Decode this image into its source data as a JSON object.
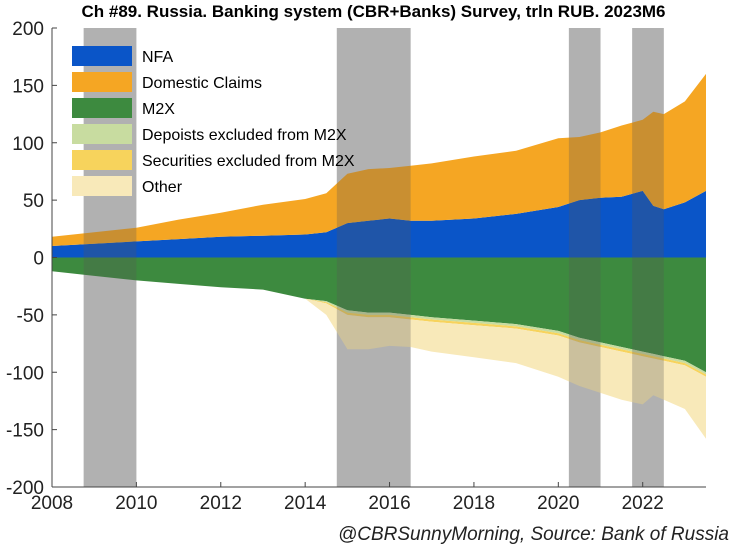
{
  "chart_data": {
    "type": "area",
    "title": "Ch #89. Russia. Banking system (CBR+Banks) Survey, trln RUB. 2023M6",
    "xlabel": "",
    "ylabel": "",
    "xlim": [
      2008,
      2023.5
    ],
    "ylim": [
      -200,
      200
    ],
    "x_ticks": [
      2008,
      2010,
      2012,
      2014,
      2016,
      2018,
      2020,
      2022
    ],
    "y_ticks": [
      200,
      150,
      100,
      50,
      0,
      -50,
      -100,
      -150,
      -200
    ],
    "legend_position": "top-left",
    "shaded_periods": [
      [
        2008.75,
        2010.0
      ],
      [
        2014.75,
        2016.5
      ],
      [
        2020.25,
        2021.0
      ],
      [
        2021.75,
        2022.5
      ]
    ],
    "x": [
      2008,
      2009,
      2010,
      2011,
      2012,
      2013,
      2014,
      2014.5,
      2015,
      2015.5,
      2016,
      2016.5,
      2017,
      2018,
      2019,
      2020,
      2020.5,
      2021,
      2021.5,
      2022,
      2022.25,
      2022.5,
      2023,
      2023.5
    ],
    "series": [
      {
        "name": "NFA",
        "color": "#0a55c8",
        "side": "positive",
        "values": [
          10,
          12,
          14,
          16,
          18,
          19,
          20,
          22,
          30,
          32,
          34,
          32,
          32,
          34,
          38,
          44,
          50,
          52,
          53,
          58,
          45,
          42,
          48,
          58
        ]
      },
      {
        "name": "Domestic Claims",
        "color": "#f5a623",
        "side": "positive",
        "values": [
          8,
          10,
          12,
          17,
          21,
          27,
          31,
          34,
          43,
          45,
          44,
          48,
          50,
          54,
          55,
          60,
          55,
          57,
          62,
          62,
          82,
          83,
          88,
          102
        ]
      },
      {
        "name": "M2X",
        "color": "#3d8a3f",
        "side": "negative",
        "values": [
          -12,
          -16,
          -20,
          -23,
          -26,
          -28,
          -36,
          -38,
          -46,
          -48,
          -48,
          -50,
          -52,
          -55,
          -58,
          -64,
          -70,
          -74,
          -78,
          -82,
          -84,
          -86,
          -90,
          -100
        ]
      },
      {
        "name": "Depoists excluded from M2X",
        "color": "#c8dca0",
        "side": "negative",
        "values": [
          0,
          0,
          0,
          0,
          0,
          0,
          0,
          -1,
          -2,
          -2,
          -2,
          -2,
          -2,
          -2,
          -2,
          -2,
          -2,
          -2,
          -2,
          -2,
          -2,
          -2,
          -2,
          -2
        ]
      },
      {
        "name": "Securities excluded from M2X",
        "color": "#f7d35c",
        "side": "negative",
        "values": [
          0,
          0,
          0,
          0,
          0,
          0,
          0,
          -1,
          -2,
          -2,
          -2,
          -2,
          -2,
          -2,
          -2,
          -2,
          -2,
          -2,
          -2,
          -2,
          -2,
          -2,
          -2,
          -2
        ]
      },
      {
        "name": "Other",
        "color": "#f8e9b9",
        "side": "negative",
        "values": [
          0,
          0,
          0,
          0,
          0,
          0,
          0,
          -10,
          -30,
          -28,
          -25,
          -24,
          -26,
          -28,
          -30,
          -36,
          -38,
          -40,
          -42,
          -42,
          -32,
          -34,
          -38,
          -54
        ]
      }
    ]
  },
  "footer": "@CBRSunnyMorning, Source: Bank of Russia"
}
